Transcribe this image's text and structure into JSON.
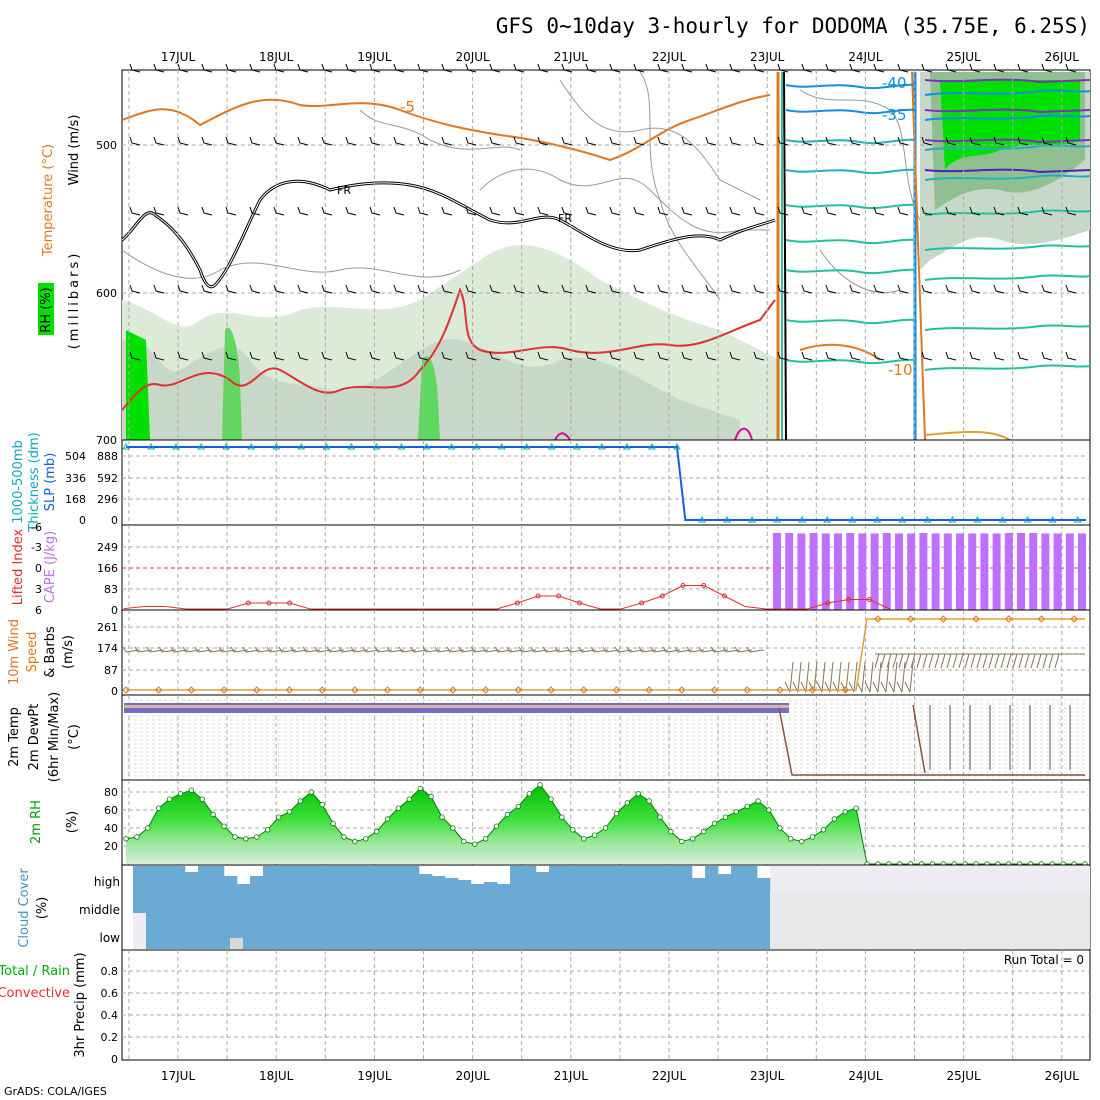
{
  "header": {
    "title": "GFS 0~10day 3-hourly for DODOMA (35.75E, 6.25S)",
    "footer": "GrADS: COLA/IGES"
  },
  "chart_data": [
    {
      "panel": "upper-air",
      "type": "contour",
      "x_days": [
        "17JUL",
        "18JUL",
        "19JUL",
        "20JUL",
        "21JUL",
        "22JUL",
        "23JUL",
        "24JUL",
        "25JUL",
        "26JUL"
      ],
      "ylabel": "(millibars)",
      "y_ticks": [
        "500",
        "600",
        "700"
      ],
      "side_labels": [
        "Wind (m/s)",
        "Temperature (°C)",
        "RH (%)"
      ],
      "contour_labels": [
        "-5",
        "FR",
        "FR",
        "-40",
        "-35",
        "-10"
      ],
      "colors": {
        "temperature_warm": "#e07820",
        "temperature_freezing": "#000000",
        "temperature_cold": "#1090e0",
        "rh_high": "#00e000",
        "rh_low": "#e0eee0"
      }
    },
    {
      "panel": "thickness-slp",
      "type": "line",
      "side_labels": [
        "1000-500mb",
        "Thickness (dm)",
        "SLP (mb)"
      ],
      "left_ticks": [
        "504",
        "336",
        "168",
        "0"
      ],
      "right_ticks": [
        "888",
        "592",
        "296",
        "0"
      ],
      "series": [
        {
          "name": "SLP",
          "color": "#1060e0",
          "values": [
            888,
            888,
            888,
            888,
            888,
            888,
            888,
            888,
            888,
            888,
            888,
            888,
            888,
            888,
            888,
            888,
            888,
            888,
            888,
            888,
            888,
            888,
            888,
            888,
            888,
            888,
            888,
            888,
            888,
            888,
            888,
            888,
            888,
            888,
            888,
            888,
            888,
            888,
            888,
            888,
            888,
            888,
            888,
            888,
            888,
            888,
            888,
            888,
            888,
            888,
            888,
            888,
            888,
            888,
            888,
            888,
            888,
            888,
            888,
            888,
            888,
            888,
            888,
            888,
            888,
            888,
            888,
            0,
            0,
            0,
            0,
            0,
            0,
            0,
            0,
            0,
            0,
            0,
            0,
            0,
            0,
            0,
            0,
            0,
            0,
            0,
            0,
            0,
            0,
            0,
            0,
            0,
            0,
            0,
            0,
            0,
            0,
            0,
            0,
            0,
            0,
            0,
            0,
            0,
            0,
            0,
            0,
            0,
            0,
            0,
            0,
            0,
            0,
            0,
            0,
            0
          ]
        }
      ]
    },
    {
      "panel": "lifted-index-cape",
      "type": "bar",
      "side_labels": [
        "Lifted Index",
        "CAPE (J/kg)"
      ],
      "left_ticks": [
        "-6",
        "-3",
        "0",
        "3",
        "6"
      ],
      "right_ticks": [
        "249",
        "166",
        "83",
        "0"
      ],
      "cape_bars": [
        332,
        332,
        330,
        332,
        330,
        330,
        332,
        330,
        330,
        332,
        330,
        330,
        332,
        330,
        330,
        330,
        330,
        330,
        330,
        332,
        332,
        332,
        330,
        330,
        330,
        330
      ],
      "lifted_index": [
        5.8,
        5.5,
        5.5,
        6,
        6,
        6,
        5,
        5,
        5,
        6,
        6,
        6,
        6,
        6,
        6,
        6,
        6,
        6,
        6,
        5,
        4,
        4,
        5,
        6,
        6,
        5,
        4,
        2.5,
        2.5,
        4,
        5.5,
        6,
        6,
        6,
        5,
        4.5,
        4.5,
        6
      ]
    },
    {
      "panel": "10m-wind",
      "type": "line",
      "side_labels": [
        "10m Wind",
        "Speed",
        "& Barbs",
        "(m/s)"
      ],
      "y_ticks": [
        "261",
        "174",
        "87",
        "0"
      ],
      "speed_values": [
        0,
        0,
        0,
        0,
        0,
        0,
        0,
        0,
        0,
        0,
        0,
        0,
        0,
        0,
        0,
        0,
        0,
        0,
        0,
        0,
        0,
        0,
        0,
        0,
        0,
        0,
        0,
        0,
        0,
        0,
        0,
        0,
        0,
        0,
        0,
        0,
        0,
        0,
        0,
        0,
        0,
        0,
        0,
        0,
        0,
        0,
        0,
        0,
        0,
        0,
        0,
        0,
        0,
        0,
        0,
        0,
        0,
        0,
        0,
        0,
        0,
        0,
        0,
        0,
        0,
        0,
        0,
        0,
        261,
        261,
        261,
        261,
        261,
        261,
        261,
        261,
        261,
        261,
        261,
        261,
        261,
        261,
        261,
        261,
        261,
        261,
        261,
        261,
        261
      ]
    },
    {
      "panel": "2m-temp",
      "type": "line",
      "side_labels": [
        "2m Temp",
        "2m DewPt",
        "(6hr Min/Max)",
        "(°C)"
      ]
    },
    {
      "panel": "2m-rh",
      "type": "area",
      "side_labels": [
        "2m RH",
        "(%)"
      ],
      "y_ticks": [
        "80",
        "60",
        "40",
        "20"
      ],
      "values": [
        28,
        30,
        40,
        62,
        72,
        78,
        82,
        72,
        55,
        42,
        30,
        28,
        30,
        38,
        52,
        58,
        70,
        80,
        66,
        45,
        30,
        25,
        28,
        36,
        50,
        62,
        72,
        84,
        75,
        52,
        40,
        25,
        22,
        28,
        42,
        55,
        64,
        78,
        88,
        72,
        52,
        38,
        28,
        32,
        40,
        56,
        68,
        78,
        70,
        52,
        36,
        25,
        28,
        36,
        45,
        52,
        58,
        64,
        70,
        60,
        40,
        28,
        25,
        30,
        38,
        50,
        58,
        62,
        0,
        0,
        0,
        0,
        0,
        0,
        0,
        0,
        0,
        0,
        0,
        0,
        0,
        0,
        0,
        0,
        0,
        0,
        0,
        0,
        0
      ]
    },
    {
      "panel": "cloud-cover",
      "type": "bar",
      "side_labels": [
        "Cloud Cover",
        "(%)"
      ],
      "levels": [
        "high",
        "middle",
        "low"
      ],
      "colors": {
        "cloud": "#6aaad4",
        "clear": "#f0ecf4",
        "missing": "#e8e8e8"
      }
    },
    {
      "panel": "precipitation",
      "type": "bar",
      "side_labels": [
        "Total / Rain",
        "Convective",
        "3hr Precip (mm)"
      ],
      "y_ticks": [
        "0.8",
        "0.6",
        "0.4",
        "0.2",
        "0"
      ],
      "run_total": "Run Total = 0",
      "values": [
        0,
        0,
        0,
        0,
        0,
        0,
        0,
        0,
        0,
        0
      ]
    }
  ]
}
